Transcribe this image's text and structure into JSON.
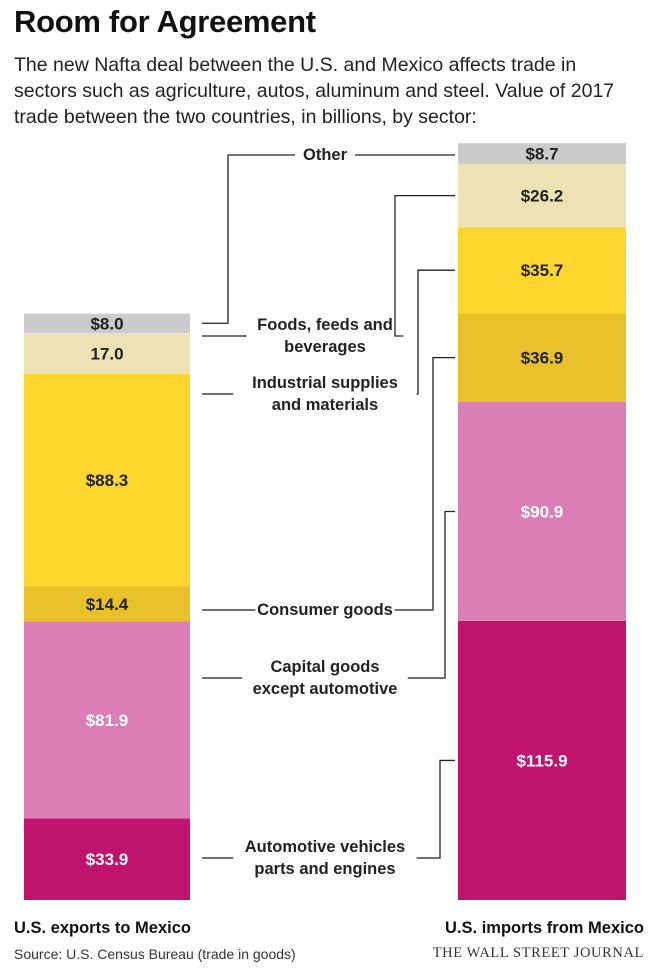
{
  "title": "Room for Agreement",
  "subtitle": "The new Nafta deal between the U.S. and Mexico affects trade in sectors such as agriculture, autos, aluminum and steel. Value of 2017 trade between the two countries, in billions, by sector:",
  "source": "Source: U.S. Census Bureau (trade in goods)",
  "brand": "THE WALL STREET JOURNAL",
  "chart_data": {
    "type": "bar",
    "stacked": true,
    "unit": "billions",
    "categories": [
      "U.S. exports to Mexico",
      "U.S. imports from Mexico"
    ],
    "series": [
      {
        "name": "Automotive vehicles parts and engines",
        "label_lines": [
          "Automotive vehicles",
          "parts and engines"
        ],
        "color": "#c0136e",
        "values": [
          33.9,
          115.9
        ],
        "labels": [
          "$33.9",
          "$115.9"
        ],
        "text_color": "#ffffff"
      },
      {
        "name": "Capital goods except automotive",
        "label_lines": [
          "Capital goods",
          "except automotive"
        ],
        "color": "#dc7db5",
        "values": [
          81.9,
          90.9
        ],
        "labels": [
          "$81.9",
          "$90.9"
        ],
        "text_color": "#ffffff"
      },
      {
        "name": "Consumer goods",
        "label_lines": [
          "Consumer goods"
        ],
        "color": "#e8c12a",
        "values": [
          14.4,
          36.9
        ],
        "labels": [
          "$14.4",
          "$36.9"
        ],
        "text_color": "#222222"
      },
      {
        "name": "Industrial supplies and materials",
        "label_lines": [
          "Industrial supplies",
          "and materials"
        ],
        "color": "#fdd62d",
        "values": [
          88.3,
          35.7
        ],
        "labels": [
          "$88.3",
          "$35.7"
        ],
        "text_color": "#222222"
      },
      {
        "name": "Foods, feeds and beverages",
        "label_lines": [
          "Foods, feeds and",
          "beverages"
        ],
        "color": "#ede2b4",
        "values": [
          17.0,
          26.2
        ],
        "labels": [
          "17.0",
          "$26.2"
        ],
        "text_color": "#222222"
      },
      {
        "name": "Other",
        "label_lines": [
          "Other"
        ],
        "color": "#cbcbcb",
        "values": [
          8.0,
          8.7
        ],
        "labels": [
          "$8.0",
          "$8.7"
        ],
        "text_color": "#222222"
      }
    ]
  }
}
